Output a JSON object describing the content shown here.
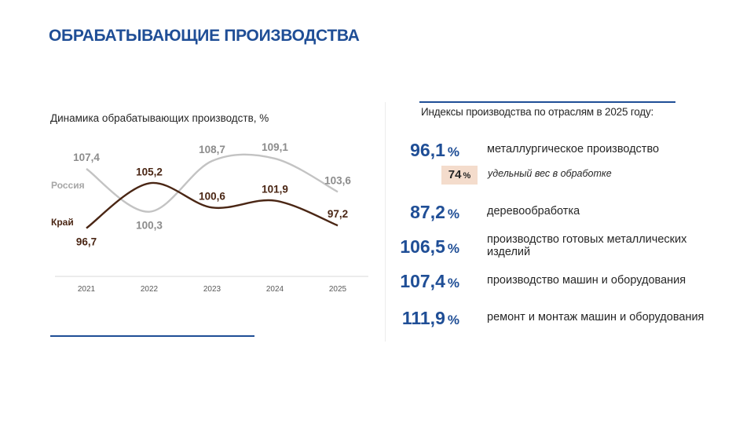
{
  "page_title": "ОБРАБАТЫВАЮЩИЕ ПРОИЗВОДСТВА",
  "chart_data": {
    "type": "line",
    "title": "Динамика обрабатывающих производств, %",
    "categories": [
      "2021",
      "2022",
      "2023",
      "2024",
      "2025"
    ],
    "series": [
      {
        "name": "Россия",
        "values": [
          107.4,
          100.3,
          108.7,
          109.1,
          103.6
        ],
        "color": "#c3c3c3",
        "label_color": "#8c8c8c"
      },
      {
        "name": "Край",
        "values": [
          96.7,
          105.2,
          100.6,
          101.9,
          97.2
        ],
        "color": "#4a2614",
        "label_color": "#4a2614"
      }
    ],
    "value_labels": [
      [
        "107,4",
        "100,3",
        "108,7",
        "109,1",
        "103,6"
      ],
      [
        "96,7",
        "105,2",
        "100,6",
        "101,9",
        "97,2"
      ]
    ],
    "grid": false,
    "legend": "left"
  },
  "indices": {
    "title": "Индексы производства по отраслям в 2025 году:",
    "percent_sign": "%",
    "items": [
      {
        "value": "96,1",
        "label": "металлургическое  производство"
      },
      {
        "value": "87,2",
        "label": "деревообработка"
      },
      {
        "value": "106,5",
        "label": "производство  готовых  металлических  изделий"
      },
      {
        "value": "107,4",
        "label": "производство машин  и оборудования"
      },
      {
        "value": "111,9",
        "label": "ремонт и монтаж машин  и оборудования"
      }
    ],
    "share": {
      "value": "74",
      "label": "удельный вес в обработке"
    }
  },
  "colors": {
    "accent": "#1f4e96",
    "badge": "#f4dccc"
  }
}
